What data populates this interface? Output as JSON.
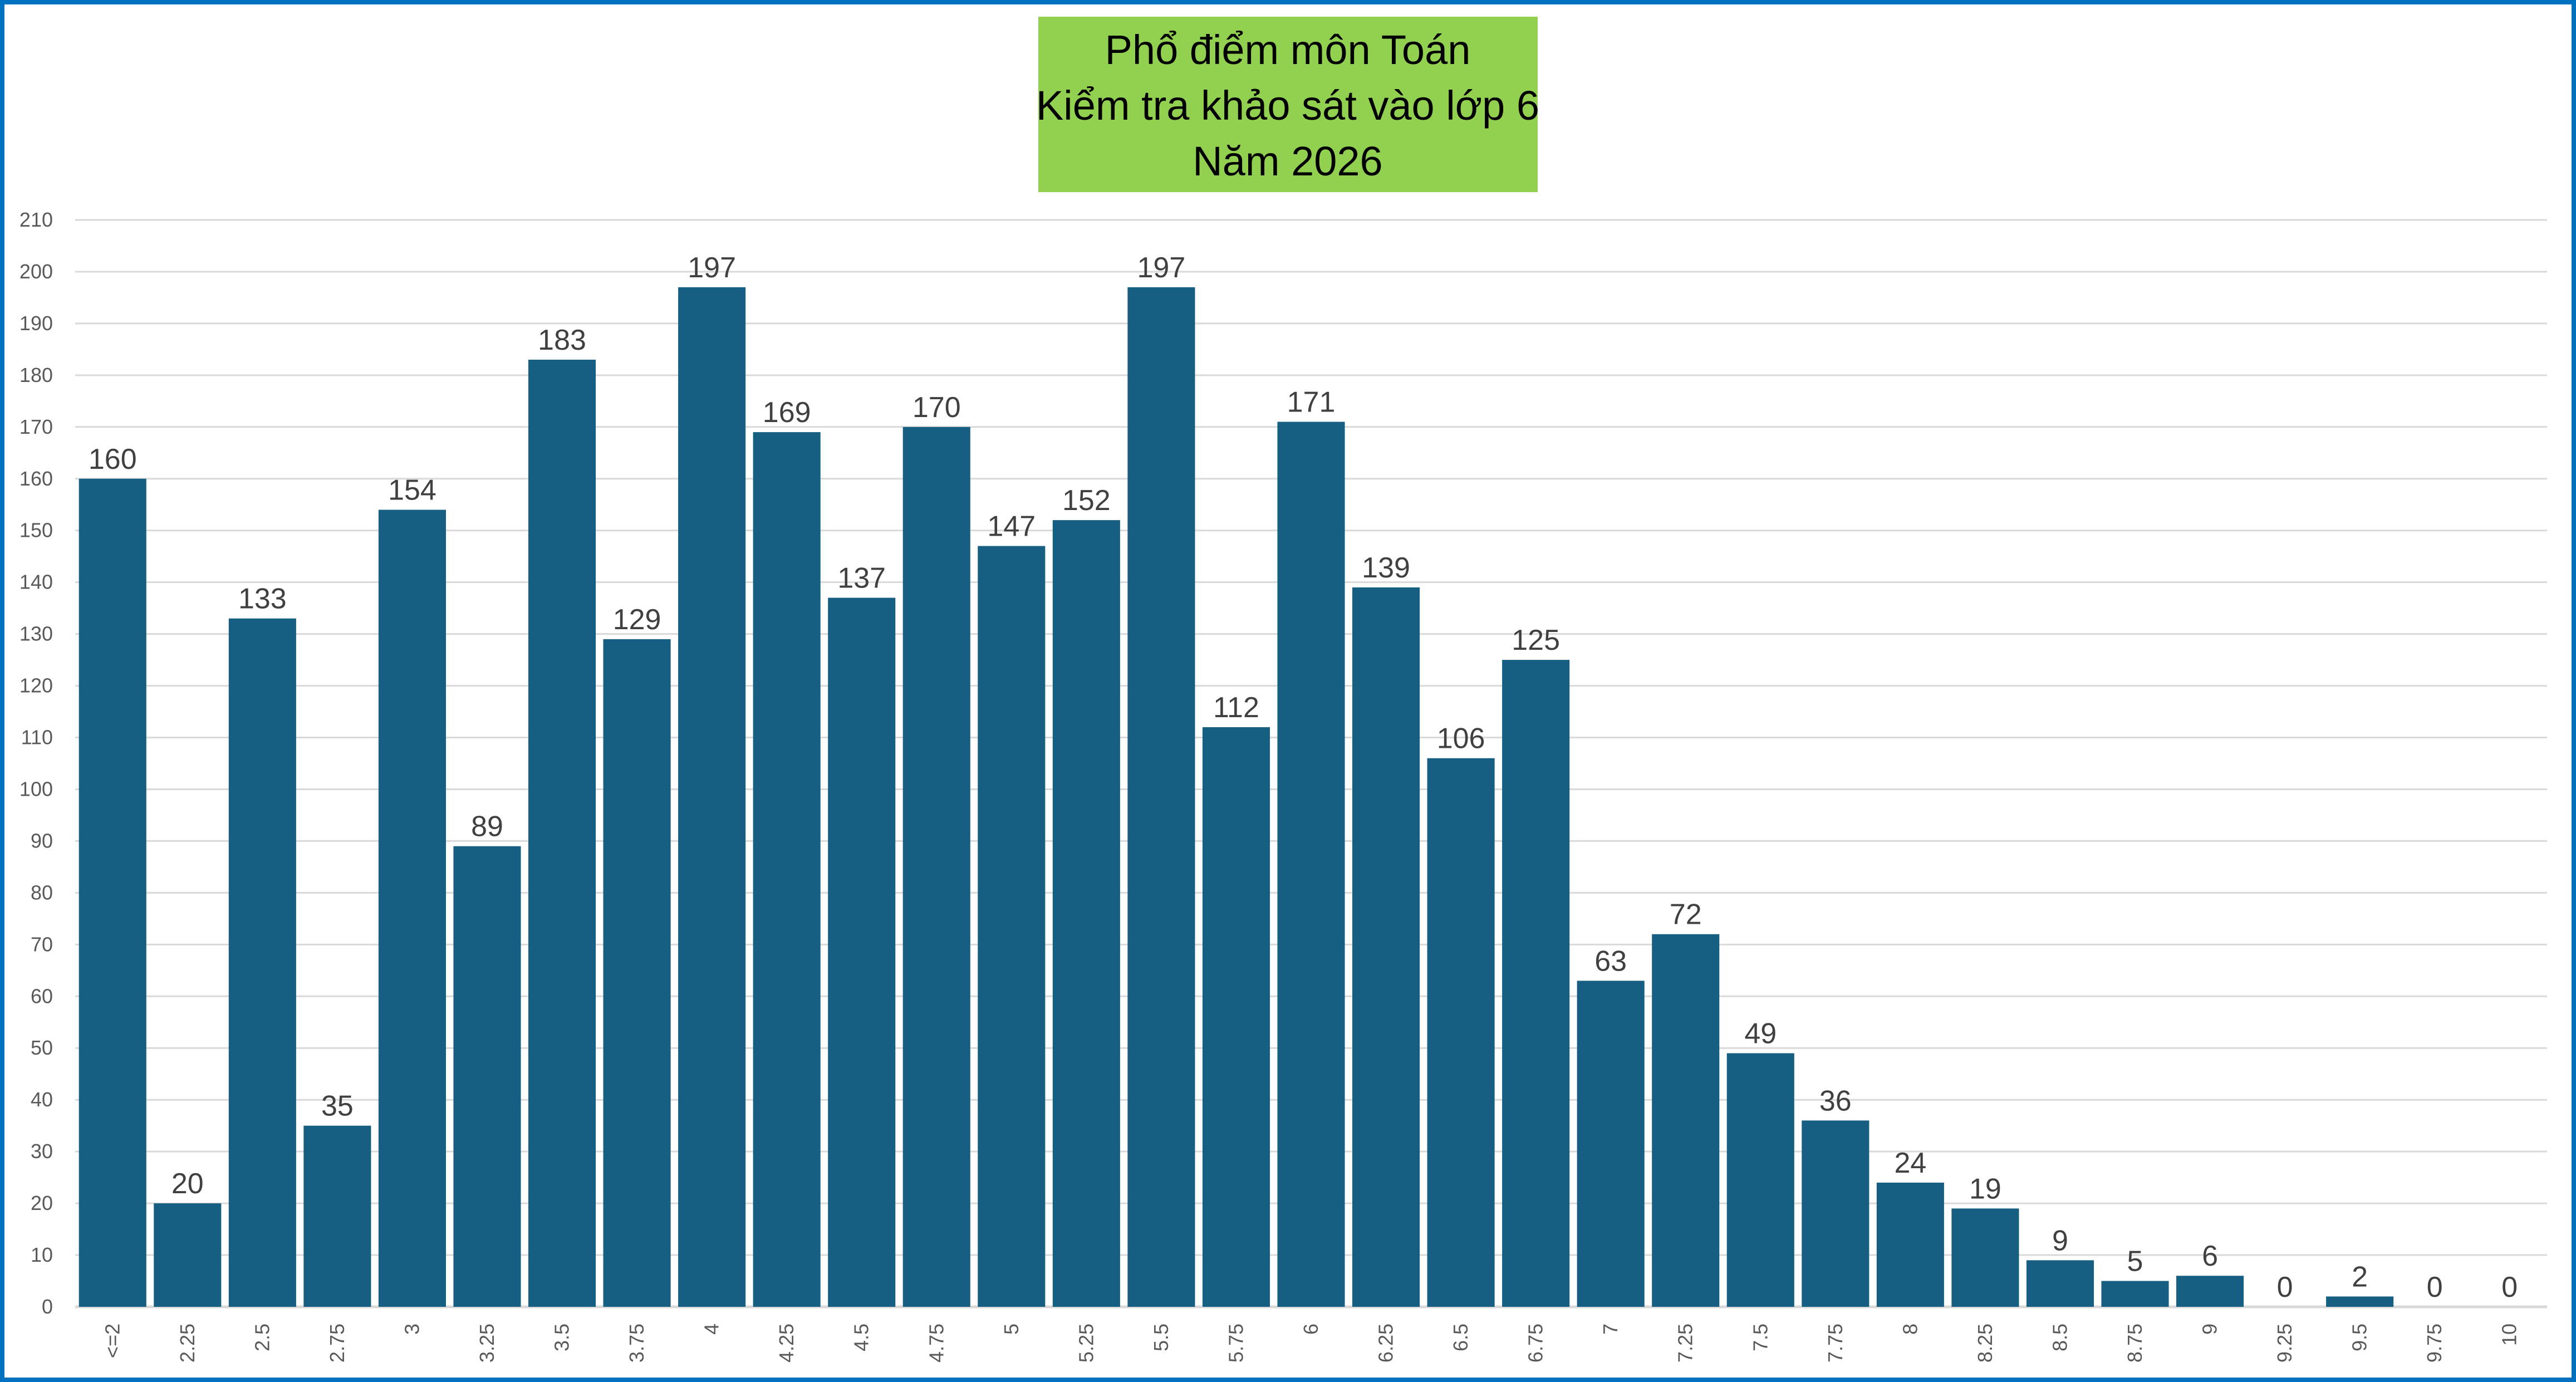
{
  "chart_data": {
    "type": "bar",
    "title": [
      "Phổ điểm môn Toán",
      "Kiểm tra khảo sát vào lớp 6",
      "Năm 2026"
    ],
    "categories": [
      "<=2",
      "2.25",
      "2.5",
      "2.75",
      "3",
      "3.25",
      "3.5",
      "3.75",
      "4",
      "4.25",
      "4.5",
      "4.75",
      "5",
      "5.25",
      "5.5",
      "5.75",
      "6",
      "6.25",
      "6.5",
      "6.75",
      "7",
      "7.25",
      "7.5",
      "7.75",
      "8",
      "8.25",
      "8.5",
      "8.75",
      "9",
      "9.25",
      "9.5",
      "9.75",
      "10"
    ],
    "values": [
      160,
      20,
      133,
      35,
      154,
      89,
      183,
      129,
      197,
      169,
      137,
      170,
      147,
      152,
      197,
      112,
      171,
      139,
      106,
      125,
      63,
      72,
      49,
      36,
      24,
      19,
      9,
      5,
      6,
      0,
      2,
      0,
      0
    ],
    "xlabel": "",
    "ylabel": "",
    "ylim": [
      0,
      210
    ],
    "yticks": [
      0,
      10,
      20,
      30,
      40,
      50,
      60,
      70,
      80,
      90,
      100,
      110,
      120,
      130,
      140,
      150,
      160,
      170,
      180,
      190,
      200,
      210
    ],
    "grid": true,
    "legend": "none",
    "data_labels": true,
    "colors": {
      "bar": "#175F82",
      "title_bg": "#92D050",
      "border": "#0070C0",
      "grid": "#D9D9D9"
    }
  }
}
